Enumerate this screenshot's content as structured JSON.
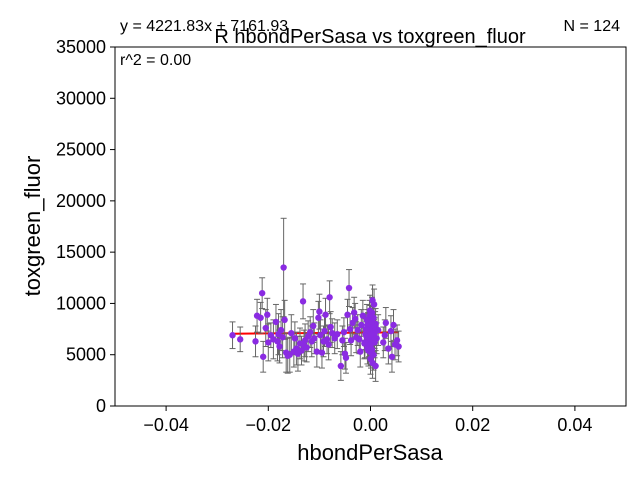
{
  "chart_data": {
    "type": "scatter",
    "title": "R hbondPerSasa vs toxgreen_fluor",
    "xlabel": "hbondPerSasa",
    "ylabel": "toxgreen_fluor",
    "xlim": [
      -0.05,
      0.05
    ],
    "ylim": [
      0,
      35000
    ],
    "xticks": [
      -0.04,
      -0.02,
      0.0,
      0.02,
      0.04
    ],
    "xtick_labels": [
      "−0.04",
      "−0.02",
      "0.00",
      "0.02",
      "0.04"
    ],
    "yticks": [
      0,
      5000,
      10000,
      15000,
      20000,
      25000,
      30000,
      35000
    ],
    "ytick_labels": [
      "0",
      "5000",
      "10000",
      "15000",
      "20000",
      "25000",
      "30000",
      "35000"
    ],
    "grid": false,
    "annotations": {
      "equation": "y = 4221.83x + 7161.93",
      "r2": "r^2 = 0.00",
      "n": "N = 124"
    },
    "fit": {
      "slope": 4221.83,
      "intercept": 7161.93,
      "x_range": [
        -0.027,
        0.0055
      ]
    },
    "colors": {
      "points": "#8a2be2",
      "errorbars": "#666666",
      "fit_line": "#ff0000"
    },
    "points": [
      [
        -0.027,
        6900,
        1300
      ],
      [
        -0.0255,
        6500,
        1200
      ],
      [
        -0.0225,
        6300,
        1500
      ],
      [
        -0.0222,
        8800,
        1600
      ],
      [
        -0.0215,
        8600,
        1500
      ],
      [
        -0.0212,
        11000,
        1500
      ],
      [
        -0.021,
        4800,
        1500
      ],
      [
        -0.0205,
        7600,
        1800
      ],
      [
        -0.0202,
        8900,
        1600
      ],
      [
        -0.02,
        6200,
        1800
      ],
      [
        -0.0195,
        6900,
        1200
      ],
      [
        -0.019,
        6500,
        1900
      ],
      [
        -0.0185,
        8200,
        1700
      ],
      [
        -0.0182,
        6300,
        1900
      ],
      [
        -0.018,
        7000,
        2000
      ],
      [
        -0.0178,
        5800,
        1600
      ],
      [
        -0.0175,
        7400,
        2000
      ],
      [
        -0.0172,
        6700,
        2000
      ],
      [
        -0.017,
        13500,
        4800
      ],
      [
        -0.0168,
        8400,
        1900
      ],
      [
        -0.0165,
        5200,
        1900
      ],
      [
        -0.0162,
        4900,
        1700
      ],
      [
        -0.0158,
        5000,
        1700
      ],
      [
        -0.0155,
        7100,
        1800
      ],
      [
        -0.015,
        5300,
        1500
      ],
      [
        -0.0148,
        6600,
        1600
      ],
      [
        -0.0145,
        5600,
        1600
      ],
      [
        -0.0142,
        5100,
        1700
      ],
      [
        -0.0138,
        6100,
        1500
      ],
      [
        -0.0135,
        5400,
        1400
      ],
      [
        -0.0132,
        10200,
        1700
      ],
      [
        -0.013,
        5900,
        1500
      ],
      [
        -0.0128,
        6400,
        1600
      ],
      [
        -0.0125,
        5700,
        1400
      ],
      [
        -0.0122,
        6800,
        1500
      ],
      [
        -0.0118,
        7200,
        1500
      ],
      [
        -0.0115,
        6300,
        1500
      ],
      [
        -0.0112,
        7800,
        1600
      ],
      [
        -0.011,
        6600,
        1500
      ],
      [
        -0.0105,
        5300,
        1500
      ],
      [
        -0.0102,
        8600,
        1600
      ],
      [
        -0.01,
        9200,
        1700
      ],
      [
        -0.0098,
        6900,
        1500
      ],
      [
        -0.0095,
        5200,
        1500
      ],
      [
        -0.0092,
        6300,
        1500
      ],
      [
        -0.009,
        7300,
        1500
      ],
      [
        -0.0088,
        8900,
        1600
      ],
      [
        -0.0085,
        6500,
        1400
      ],
      [
        -0.0082,
        6000,
        1500
      ],
      [
        -0.008,
        10600,
        1600
      ],
      [
        -0.0078,
        7700,
        1500
      ],
      [
        -0.0075,
        7100,
        1400
      ],
      [
        -0.007,
        6600,
        1500
      ],
      [
        -0.0065,
        7000,
        1400
      ],
      [
        -0.0058,
        3900,
        1400
      ],
      [
        -0.0055,
        6400,
        1400
      ],
      [
        -0.0052,
        7200,
        1400
      ],
      [
        -0.005,
        5100,
        1500
      ],
      [
        -0.0048,
        4700,
        1500
      ],
      [
        -0.0045,
        8900,
        1500
      ],
      [
        -0.0042,
        11500,
        1800
      ],
      [
        -0.004,
        7500,
        1500
      ],
      [
        -0.0038,
        6400,
        1500
      ],
      [
        -0.0035,
        8100,
        1500
      ],
      [
        -0.0032,
        9100,
        1500
      ],
      [
        -0.003,
        8500,
        1500
      ],
      [
        -0.0028,
        6700,
        1500
      ],
      [
        -0.0025,
        7400,
        1500
      ],
      [
        -0.0022,
        6500,
        1400
      ],
      [
        -0.002,
        5300,
        1500
      ],
      [
        -0.0018,
        7900,
        1500
      ],
      [
        -0.0015,
        8800,
        1500
      ],
      [
        -0.0012,
        6100,
        1500
      ],
      [
        -0.001,
        7000,
        1500
      ],
      [
        -0.0008,
        6800,
        1400
      ],
      [
        -0.0005,
        7600,
        1500
      ],
      [
        -0.0003,
        6300,
        1500
      ],
      [
        0.0,
        5800,
        1500
      ],
      [
        0.0,
        7200,
        1500
      ],
      [
        0.0,
        8300,
        1500
      ],
      [
        0.0,
        4600,
        1500
      ],
      [
        0.0002,
        6500,
        1500
      ],
      [
        0.0002,
        7800,
        1500
      ],
      [
        0.0003,
        5500,
        1500
      ],
      [
        0.0003,
        9100,
        1500
      ],
      [
        0.0004,
        10300,
        1500
      ],
      [
        0.0004,
        4200,
        1500
      ],
      [
        0.0005,
        6900,
        1500
      ],
      [
        0.0005,
        7400,
        1500
      ],
      [
        0.0006,
        8600,
        1500
      ],
      [
        0.0006,
        5000,
        1500
      ],
      [
        0.0007,
        9900,
        1500
      ],
      [
        0.0008,
        6200,
        1500
      ],
      [
        0.0008,
        7100,
        1500
      ],
      [
        0.0009,
        7700,
        1500
      ],
      [
        0.001,
        3900,
        1500
      ],
      [
        0.001,
        8000,
        1500
      ],
      [
        0.0012,
        6600,
        1500
      ],
      [
        -0.0001,
        9300,
        1500
      ],
      [
        -0.0001,
        6000,
        1500
      ],
      [
        -0.0002,
        7300,
        1500
      ],
      [
        -0.0002,
        8800,
        1500
      ],
      [
        -0.0004,
        5400,
        1500
      ],
      [
        -0.0004,
        6700,
        1500
      ],
      [
        -0.0006,
        7900,
        1500
      ],
      [
        -0.0006,
        5600,
        1500
      ],
      [
        -0.0007,
        8400,
        1500
      ],
      [
        -0.0009,
        7500,
        1500
      ],
      [
        -0.0011,
        6200,
        1500
      ],
      [
        0.0001,
        7000,
        1500
      ],
      [
        0.0001,
        5200,
        1500
      ],
      [
        0.0003,
        8200,
        1500
      ],
      [
        0.0007,
        6400,
        1500
      ],
      [
        0.0015,
        7400,
        1500
      ],
      [
        0.0025,
        6200,
        1500
      ],
      [
        0.0028,
        6900,
        1500
      ],
      [
        0.003,
        8100,
        1500
      ],
      [
        0.0035,
        5600,
        1500
      ],
      [
        0.004,
        7300,
        1500
      ],
      [
        0.0042,
        4800,
        1500
      ],
      [
        0.0045,
        7900,
        1500
      ],
      [
        0.0048,
        6000,
        1500
      ],
      [
        0.0052,
        6400,
        1500
      ],
      [
        0.0055,
        5800,
        1500
      ]
    ]
  }
}
